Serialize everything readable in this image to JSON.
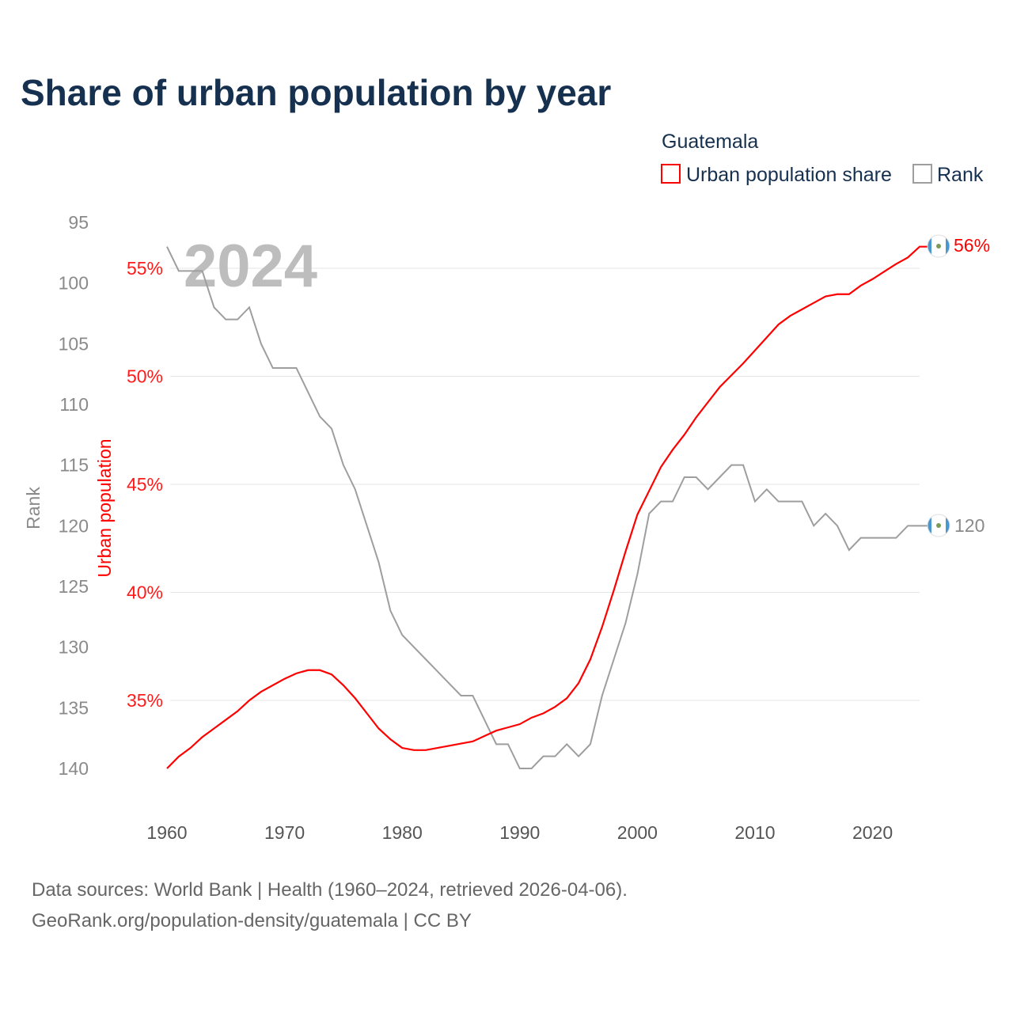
{
  "chart_data": {
    "type": "line",
    "title": "Share of urban population by year",
    "legend": {
      "title": "Guatemala",
      "entries": [
        "Urban population share",
        "Rank"
      ],
      "placement": "top-right"
    },
    "watermark_year": "2024",
    "xlabel": "",
    "x": [
      1960,
      1961,
      1962,
      1963,
      1964,
      1965,
      1966,
      1967,
      1968,
      1969,
      1970,
      1971,
      1972,
      1973,
      1974,
      1975,
      1976,
      1977,
      1978,
      1979,
      1980,
      1981,
      1982,
      1983,
      1984,
      1985,
      1986,
      1987,
      1988,
      1989,
      1990,
      1991,
      1992,
      1993,
      1994,
      1995,
      1996,
      1997,
      1998,
      1999,
      2000,
      2001,
      2002,
      2003,
      2004,
      2005,
      2006,
      2007,
      2008,
      2009,
      2010,
      2011,
      2012,
      2013,
      2014,
      2015,
      2016,
      2017,
      2018,
      2019,
      2020,
      2021,
      2022,
      2023,
      2024
    ],
    "x_ticks": [
      "1960",
      "1970",
      "1980",
      "1990",
      "2000",
      "2010",
      "2020"
    ],
    "xlim": [
      1960,
      2024
    ],
    "series": [
      {
        "name": "Urban population share",
        "axis": "right-inner",
        "ylabel": "Urban population",
        "color": "#ff0000",
        "ylim": [
          31.85,
          57.05
        ],
        "ticks": [
          35,
          40,
          45,
          50,
          55
        ],
        "tick_labels": [
          "35%",
          "40%",
          "45%",
          "50%",
          "55%"
        ],
        "end_label": "56%",
        "values": [
          31.85,
          32.4,
          32.8,
          33.3,
          33.7,
          34.1,
          34.5,
          35.0,
          35.4,
          35.7,
          36.0,
          36.25,
          36.4,
          36.4,
          36.2,
          35.7,
          35.1,
          34.4,
          33.7,
          33.2,
          32.8,
          32.7,
          32.7,
          32.8,
          32.9,
          33.0,
          33.1,
          33.35,
          33.6,
          33.75,
          33.9,
          34.2,
          34.4,
          34.7,
          35.1,
          35.8,
          36.9,
          38.4,
          40.1,
          41.9,
          43.6,
          44.7,
          45.8,
          46.6,
          47.3,
          48.1,
          48.8,
          49.5,
          50.05,
          50.6,
          51.2,
          51.8,
          52.4,
          52.8,
          53.1,
          53.4,
          53.7,
          53.8,
          53.8,
          54.2,
          54.5,
          54.85,
          55.2,
          55.5,
          56.0
        ]
      },
      {
        "name": "Rank",
        "axis": "left",
        "ylabel": "Rank",
        "color": "#9e9e9e",
        "ylim": [
          95,
          140
        ],
        "inverted": true,
        "ticks": [
          95,
          100,
          105,
          110,
          115,
          120,
          125,
          130,
          135,
          140
        ],
        "tick_labels": [
          "95",
          "100",
          "105",
          "110",
          "115",
          "120",
          "125",
          "130",
          "135",
          "140"
        ],
        "end_label": "120",
        "values": [
          97,
          99,
          99,
          99,
          102,
          103,
          103,
          102,
          105,
          107,
          107,
          107,
          109,
          111,
          112,
          115,
          117,
          120,
          123,
          127,
          129,
          130,
          131,
          132,
          133,
          134,
          134,
          136,
          138,
          138,
          140,
          140,
          139,
          139,
          138,
          139,
          138,
          134,
          131,
          128,
          124,
          119,
          118,
          118,
          116,
          116,
          117,
          116,
          115,
          115,
          118,
          117,
          118,
          118,
          118,
          120,
          119,
          120,
          122,
          121,
          121,
          121,
          121,
          120,
          120
        ]
      }
    ],
    "grid": true
  },
  "source": {
    "line1": "Data sources: World Bank | Health (1960–2024, retrieved 2026-04-06).",
    "line2": "GeoRank.org/population-density/guatemala | CC BY"
  }
}
